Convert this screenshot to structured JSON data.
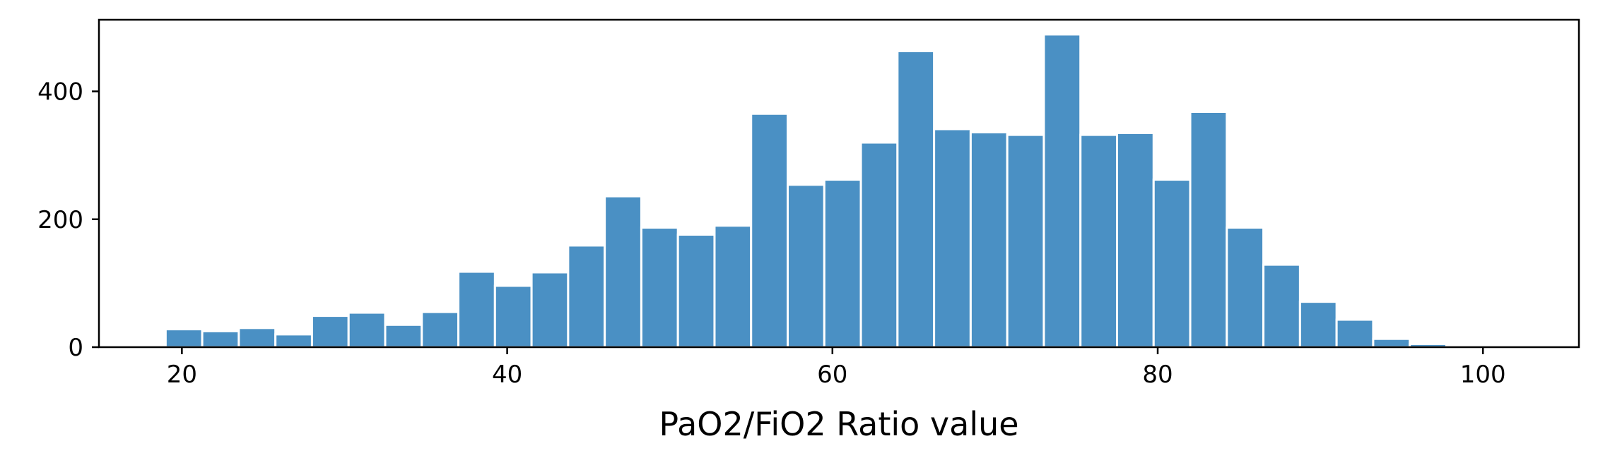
{
  "chart_data": {
    "type": "bar",
    "title": "",
    "xlabel": "PaO2/FiO2 Ratio value",
    "ylabel": "",
    "xlim": [
      14.9,
      105.9
    ],
    "ylim": [
      0,
      512
    ],
    "xticks": [
      20,
      40,
      60,
      80,
      100
    ],
    "yticks": [
      0,
      200,
      400
    ],
    "bin_edges": [
      19.0,
      21.25,
      23.5,
      25.75,
      28.0,
      30.25,
      32.5,
      34.75,
      37.0,
      39.25,
      41.5,
      43.75,
      46.0,
      48.25,
      50.5,
      52.75,
      55.0,
      57.25,
      59.5,
      61.75,
      64.0,
      66.25,
      68.5,
      70.75,
      73.0,
      75.25,
      77.5,
      79.75,
      82.0,
      84.25,
      86.5,
      88.75,
      91.0,
      93.25,
      95.5,
      97.75,
      100.0,
      102.25
    ],
    "values": [
      28,
      25,
      30,
      20,
      49,
      54,
      35,
      55,
      118,
      96,
      117,
      159,
      236,
      187,
      176,
      190,
      365,
      254,
      262,
      320,
      463,
      341,
      336,
      332,
      489,
      332,
      335,
      262,
      368,
      187,
      129,
      71,
      43,
      13,
      5,
      3,
      3
    ],
    "color": "#4a90c4",
    "grid": false,
    "legend": "none"
  }
}
